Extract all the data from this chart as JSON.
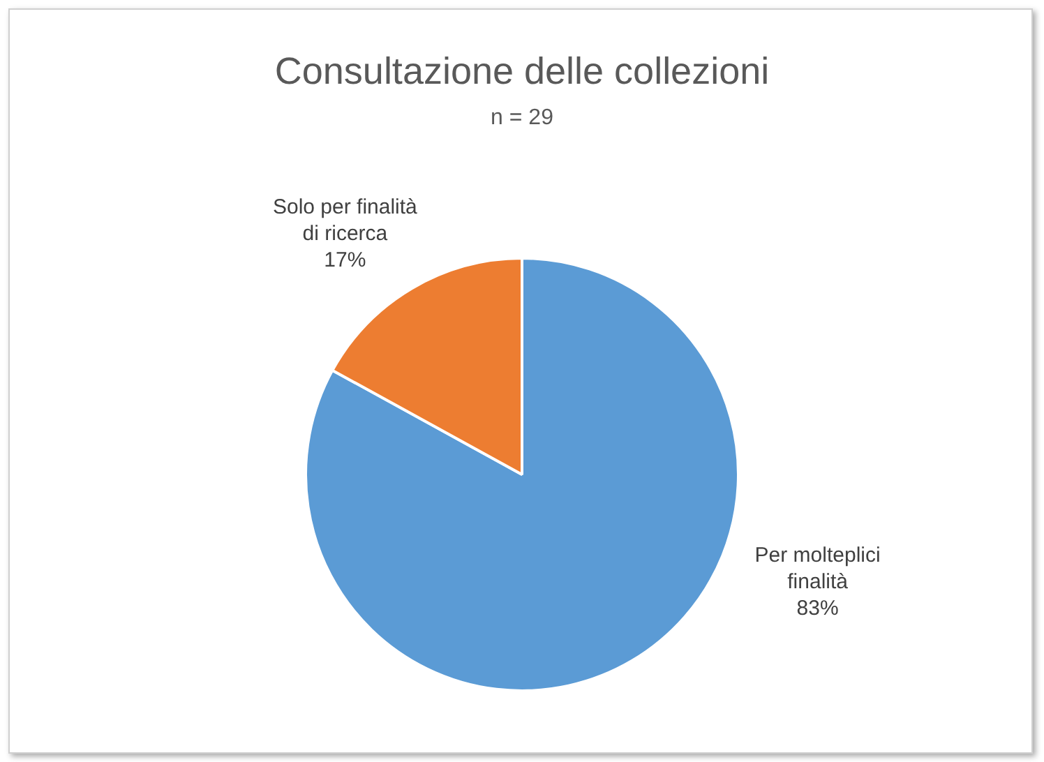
{
  "chart_data": {
    "type": "pie",
    "title": "Consultazione delle collezioni",
    "subtitle": "n = 29",
    "categories": [
      "Per molteplici finalità",
      "Solo per finalità di ricerca"
    ],
    "values": [
      83,
      17
    ],
    "colors": [
      "#5b9bd5",
      "#ed7d31"
    ],
    "value_labels": [
      "83%",
      "17%"
    ],
    "legend": false
  }
}
